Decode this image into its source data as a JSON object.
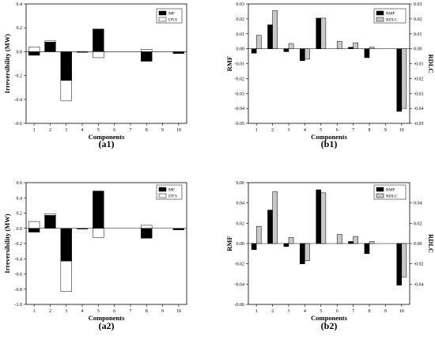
{
  "chart_data": [
    {
      "id": "a1",
      "type": "bar",
      "layout": "stacked",
      "categories": [
        "1",
        "2",
        "3",
        "4",
        "5",
        "6",
        "7",
        "8",
        "9",
        "10"
      ],
      "xlabel": "Components",
      "ylabel": "Irreversibility (MW)",
      "ylim": [
        -0.6,
        0.4
      ],
      "yticks": [
        "-0.6",
        "-0.4",
        "-0.2",
        "0.0",
        "0.2",
        "0.4"
      ],
      "caption": "(a1)",
      "legend_position": "top-right",
      "series": [
        {
          "name": "MF",
          "color": "#000000",
          "values": [
            -0.03,
            0.08,
            -0.24,
            -0.005,
            0.19,
            0,
            0,
            -0.08,
            0,
            -0.015
          ]
        },
        {
          "name": "DYS",
          "color": "#ffffff",
          "values": [
            0.04,
            0.01,
            -0.17,
            0,
            -0.05,
            0,
            0,
            0.02,
            0,
            0
          ]
        }
      ]
    },
    {
      "id": "b1",
      "type": "bar",
      "layout": "grouped",
      "categories": [
        "1",
        "2",
        "3",
        "4",
        "5",
        "6",
        "7",
        "8",
        "9",
        "10"
      ],
      "xlabel": "Components",
      "ylabel": "RMF",
      "ylabel_right": "RDLC",
      "ylim": [
        -0.05,
        0.03
      ],
      "yticks": [
        "-0.05",
        "-0.04",
        "-0.03",
        "-0.02",
        "-0.01",
        "0.00",
        "0.01",
        "0.02",
        "0.03"
      ],
      "caption": "(b1)",
      "legend_position": "top-right",
      "series": [
        {
          "name": "RMF",
          "color": "#000000",
          "values": [
            -0.003,
            0.016,
            -0.002,
            -0.008,
            0.0205,
            0,
            0.001,
            -0.006,
            0,
            -0.042
          ]
        },
        {
          "name": "RDLC",
          "color": "#c8c8c8",
          "values": [
            0.009,
            0.0255,
            0.0035,
            -0.007,
            0.0205,
            0.005,
            0.004,
            0.001,
            0,
            -0.04
          ]
        }
      ]
    },
    {
      "id": "a2",
      "type": "bar",
      "layout": "stacked",
      "categories": [
        "1",
        "2",
        "3",
        "4",
        "5",
        "6",
        "7",
        "8",
        "9",
        "10"
      ],
      "xlabel": "Components",
      "ylabel": "Irreversibility (MW)",
      "ylim": [
        -1.0,
        0.6
      ],
      "yticks": [
        "-1.0",
        "-0.8",
        "-0.6",
        "-0.4",
        "-0.2",
        "0.0",
        "0.2",
        "0.4",
        "0.6"
      ],
      "caption": "(a2)",
      "legend_position": "top-right",
      "series": [
        {
          "name": "MF",
          "color": "#000000",
          "values": [
            -0.05,
            0.17,
            -0.43,
            -0.01,
            0.49,
            0,
            0,
            -0.13,
            0,
            -0.02
          ]
        },
        {
          "name": "DYS",
          "color": "#ffffff",
          "values": [
            0.09,
            0.02,
            -0.4,
            0,
            -0.12,
            0,
            0,
            0.04,
            0,
            0
          ]
        }
      ]
    },
    {
      "id": "b2",
      "type": "bar",
      "layout": "grouped",
      "categories": [
        "1",
        "2",
        "3",
        "4",
        "5",
        "6",
        "7",
        "8",
        "9",
        "10"
      ],
      "xlabel": "Components",
      "ylabel": "RMF",
      "ylabel_right": "RDLC",
      "ylim": [
        -0.06,
        0.06
      ],
      "yticks": [
        "-0.06",
        "-0.04",
        "-0.02",
        "0.00",
        "0.02",
        "0.04",
        "0.06"
      ],
      "yticks_right": [
        "-0.04",
        "-0.02",
        "0.00",
        "0.02",
        "0.04"
      ],
      "caption": "(b2)",
      "legend_position": "top-right",
      "series": [
        {
          "name": "RMF",
          "color": "#000000",
          "values": [
            -0.006,
            0.033,
            -0.003,
            -0.02,
            0.053,
            0,
            0.002,
            -0.01,
            0,
            -0.041
          ]
        },
        {
          "name": "RDLC",
          "color": "#c8c8c8",
          "values": [
            0.017,
            0.051,
            0.006,
            -0.017,
            0.05,
            0.009,
            0.007,
            0.002,
            0,
            -0.033
          ]
        }
      ]
    }
  ]
}
